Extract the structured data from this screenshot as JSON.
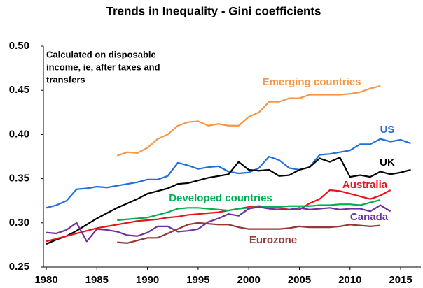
{
  "chart_data": {
    "type": "line",
    "title": "Trends in Inequality -  Gini coefficients",
    "annotation": [
      "Calculated on disposable",
      "income, ie, after taxes and",
      "transfers"
    ],
    "xlim": [
      1980,
      2017
    ],
    "xticks": [
      1980,
      1985,
      1990,
      1995,
      2000,
      2005,
      2010,
      2015
    ],
    "ylim": [
      0.25,
      0.5
    ],
    "yticks": [
      0.25,
      {
        "value": 0.3,
        "label": "0.30"
      },
      0.35,
      {
        "value": 0.4,
        "label": "0.40"
      },
      0.45,
      {
        "value": 0.5,
        "label": "0.50"
      }
    ],
    "series": [
      {
        "name": "Emerging countries",
        "color": "#f79646",
        "x": [
          1987,
          1988,
          1989,
          1990,
          1991,
          1992,
          1993,
          1994,
          1995,
          1996,
          1997,
          1998,
          1999,
          2000,
          2001,
          2002,
          2003,
          2004,
          2005,
          2006,
          2007,
          2008,
          2009,
          2010,
          2011,
          2012,
          2013
        ],
        "values": [
          0.376,
          0.38,
          0.379,
          0.385,
          0.395,
          0.4,
          0.41,
          0.414,
          0.415,
          0.41,
          0.412,
          0.41,
          0.41,
          0.42,
          0.425,
          0.437,
          0.437,
          0.441,
          0.441,
          0.445,
          0.445,
          0.445,
          0.445,
          0.446,
          0.448,
          0.452,
          0.455
        ]
      },
      {
        "name": "US",
        "color": "#1f6fdc",
        "x": [
          1980,
          1981,
          1982,
          1983,
          1984,
          1985,
          1986,
          1987,
          1988,
          1989,
          1990,
          1991,
          1992,
          1993,
          1994,
          1995,
          1996,
          1997,
          1998,
          1999,
          2000,
          2001,
          2002,
          2003,
          2004,
          2005,
          2006,
          2007,
          2008,
          2009,
          2010,
          2011,
          2012,
          2013,
          2014,
          2015,
          2016
        ],
        "values": [
          0.317,
          0.32,
          0.325,
          0.338,
          0.339,
          0.341,
          0.34,
          0.342,
          0.344,
          0.346,
          0.349,
          0.349,
          0.353,
          0.368,
          0.365,
          0.361,
          0.363,
          0.364,
          0.358,
          0.356,
          0.357,
          0.362,
          0.375,
          0.371,
          0.362,
          0.36,
          0.363,
          0.377,
          0.378,
          0.38,
          0.382,
          0.389,
          0.389,
          0.395,
          0.392,
          0.394,
          0.39
        ]
      },
      {
        "name": "UK",
        "color": "#000000",
        "x": [
          1980,
          1981,
          1982,
          1983,
          1984,
          1985,
          1986,
          1987,
          1988,
          1989,
          1990,
          1991,
          1992,
          1993,
          1994,
          1995,
          1996,
          1997,
          1998,
          1999,
          2000,
          2001,
          2002,
          2003,
          2004,
          2005,
          2006,
          2007,
          2008,
          2009,
          2010,
          2011,
          2012,
          2013,
          2014,
          2015,
          2016
        ],
        "values": [
          0.276,
          0.281,
          0.285,
          0.291,
          0.298,
          0.305,
          0.311,
          0.317,
          0.322,
          0.327,
          0.333,
          0.336,
          0.339,
          0.344,
          0.345,
          0.348,
          0.351,
          0.353,
          0.355,
          0.369,
          0.36,
          0.359,
          0.36,
          0.353,
          0.354,
          0.36,
          0.363,
          0.373,
          0.369,
          0.374,
          0.352,
          0.354,
          0.352,
          0.358,
          0.355,
          0.357,
          0.36
        ]
      },
      {
        "name": "Australia",
        "color": "#e8141b",
        "x": [
          1980,
          1981,
          1982,
          1983,
          1984,
          1985,
          1986,
          1987,
          1988,
          1989,
          1990,
          1991,
          1992,
          1993,
          1994,
          1995,
          1996,
          1997,
          1998,
          1999,
          2000,
          2001,
          2002,
          2003,
          2004,
          2005,
          2006,
          2007,
          2008,
          2009,
          2010,
          2011,
          2012,
          2013,
          2014
        ],
        "values": [
          0.279,
          0.282,
          0.285,
          0.288,
          0.291,
          0.294,
          0.296,
          0.298,
          0.3,
          0.302,
          0.303,
          0.304,
          0.306,
          0.307,
          0.309,
          0.31,
          0.311,
          0.312,
          0.314,
          0.316,
          0.318,
          0.319,
          0.318,
          0.317,
          0.315,
          0.315,
          0.322,
          0.327,
          0.337,
          0.336,
          0.333,
          0.33,
          0.327,
          0.331,
          0.337
        ]
      },
      {
        "name": "Developed countries",
        "color": "#00b050",
        "x": [
          1987,
          1988,
          1989,
          1990,
          1991,
          1992,
          1993,
          1994,
          1995,
          1996,
          1997,
          1998,
          1999,
          2000,
          2001,
          2002,
          2003,
          2004,
          2005,
          2006,
          2007,
          2008,
          2009,
          2010,
          2011,
          2012,
          2013
        ],
        "values": [
          0.303,
          0.304,
          0.305,
          0.306,
          0.309,
          0.312,
          0.316,
          0.317,
          0.317,
          0.316,
          0.315,
          0.314,
          0.316,
          0.317,
          0.318,
          0.318,
          0.318,
          0.319,
          0.319,
          0.319,
          0.32,
          0.32,
          0.321,
          0.321,
          0.32,
          0.323,
          0.326
        ]
      },
      {
        "name": "Canada",
        "color": "#7030a0",
        "x": [
          1980,
          1981,
          1982,
          1983,
          1984,
          1985,
          1986,
          1987,
          1988,
          1989,
          1990,
          1991,
          1992,
          1993,
          1994,
          1995,
          1996,
          1997,
          1998,
          1999,
          2000,
          2001,
          2002,
          2003,
          2004,
          2005,
          2006,
          2007,
          2008,
          2009,
          2010,
          2011,
          2012,
          2013,
          2014
        ],
        "values": [
          0.289,
          0.288,
          0.292,
          0.3,
          0.279,
          0.293,
          0.292,
          0.29,
          0.286,
          0.285,
          0.289,
          0.296,
          0.296,
          0.29,
          0.291,
          0.293,
          0.301,
          0.305,
          0.31,
          0.308,
          0.316,
          0.318,
          0.316,
          0.315,
          0.315,
          0.317,
          0.315,
          0.316,
          0.317,
          0.315,
          0.316,
          0.316,
          0.313,
          0.32,
          0.313
        ]
      },
      {
        "name": "Eurozone",
        "color": "#953735",
        "x": [
          1987,
          1988,
          1989,
          1990,
          1991,
          1992,
          1993,
          1994,
          1995,
          1996,
          1997,
          1998,
          1999,
          2000,
          2001,
          2002,
          2003,
          2004,
          2005,
          2006,
          2007,
          2008,
          2009,
          2010,
          2011,
          2012,
          2013
        ],
        "values": [
          0.278,
          0.277,
          0.28,
          0.283,
          0.283,
          0.288,
          0.293,
          0.298,
          0.3,
          0.299,
          0.298,
          0.298,
          0.295,
          0.293,
          0.293,
          0.293,
          0.293,
          0.294,
          0.296,
          0.295,
          0.295,
          0.295,
          0.296,
          0.298,
          0.297,
          0.296,
          0.297
        ]
      }
    ]
  }
}
